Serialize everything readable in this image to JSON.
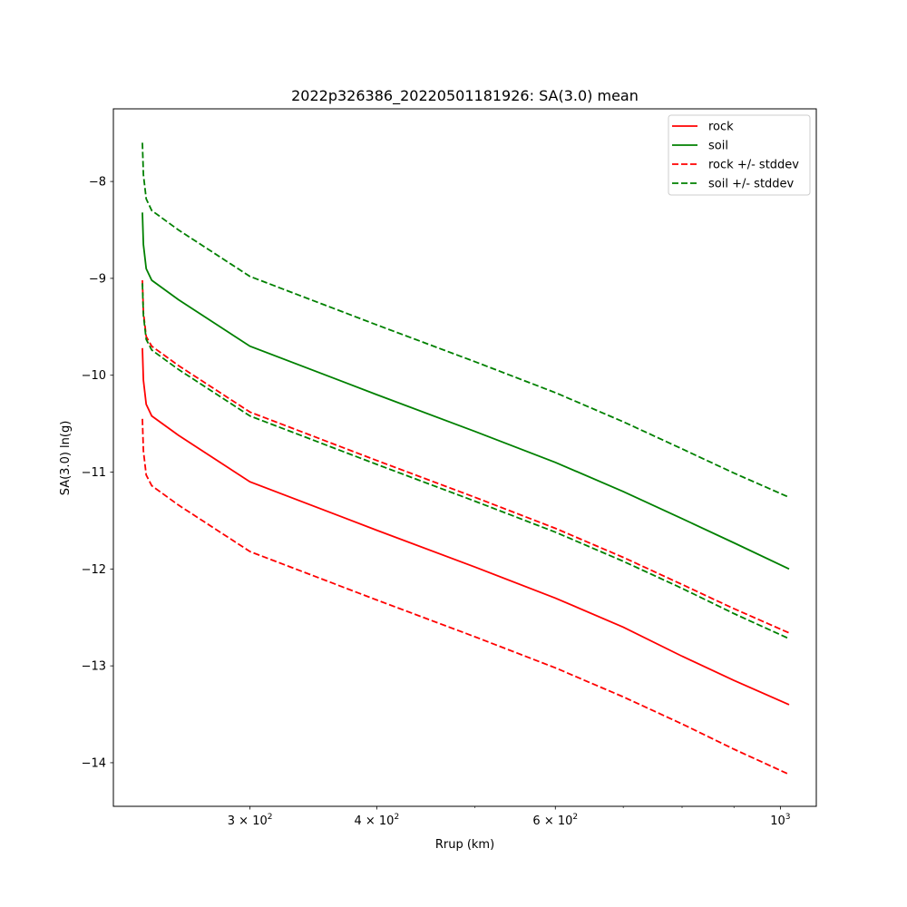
{
  "chart_data": {
    "type": "line",
    "title": "2022p326386_20220501181926: SA(3.0) mean",
    "xlabel": "Rrup (km)",
    "ylabel": "SA(3.0) ln(g)",
    "xscale": "log",
    "xlim": [
      220,
      1085
    ],
    "ylim": [
      -14.45,
      -7.25
    ],
    "grid": false,
    "legend_position": "upper-right",
    "x_ticks": [
      {
        "value": 300,
        "base": "3 × 10",
        "exp": "2"
      },
      {
        "value": 400,
        "base": "4 × 10",
        "exp": "2"
      },
      {
        "value": 600,
        "base": "6 × 10",
        "exp": "2"
      },
      {
        "value": 1000,
        "base": "10",
        "exp": "3"
      }
    ],
    "x_minor_ticks": [
      500,
      700,
      800,
      900
    ],
    "y_ticks": [
      -8,
      -9,
      -10,
      -11,
      -12,
      -13,
      -14
    ],
    "x": [
      235,
      235.5,
      237,
      240,
      255,
      300,
      400,
      500,
      600,
      700,
      800,
      900,
      1020
    ],
    "series": [
      {
        "name": "rock",
        "color": "#ff0000",
        "style": "solid",
        "values": [
          -9.72,
          -10.05,
          -10.3,
          -10.42,
          -10.62,
          -11.1,
          -11.6,
          -11.98,
          -12.3,
          -12.6,
          -12.9,
          -13.15,
          -13.4
        ]
      },
      {
        "name": "soil",
        "color": "#008000",
        "style": "solid",
        "values": [
          -8.32,
          -8.65,
          -8.9,
          -9.02,
          -9.22,
          -9.7,
          -10.2,
          -10.58,
          -10.9,
          -11.2,
          -11.48,
          -11.73,
          -12.0
        ]
      },
      {
        "name": "rock +/- stddev",
        "color": "#ff0000",
        "style": "dashed",
        "values": [
          -9.02,
          -9.35,
          -9.6,
          -9.7,
          -9.9,
          -10.38,
          -10.88,
          -11.26,
          -11.58,
          -11.88,
          -12.16,
          -12.41,
          -12.66
        ]
      },
      {
        "name": "",
        "color": "#ff0000",
        "style": "dashed",
        "values": [
          -10.45,
          -10.78,
          -11.03,
          -11.14,
          -11.34,
          -11.82,
          -12.32,
          -12.7,
          -13.02,
          -13.32,
          -13.6,
          -13.86,
          -14.12
        ]
      },
      {
        "name": "soil +/- stddev",
        "color": "#008000",
        "style": "dashed",
        "values": [
          -7.6,
          -7.93,
          -8.18,
          -8.3,
          -8.5,
          -8.98,
          -9.48,
          -9.86,
          -10.18,
          -10.48,
          -10.76,
          -11.01,
          -11.26
        ]
      },
      {
        "name": "",
        "color": "#008000",
        "style": "dashed",
        "values": [
          -9.05,
          -9.38,
          -9.63,
          -9.74,
          -9.94,
          -10.42,
          -10.92,
          -11.3,
          -11.62,
          -11.92,
          -12.2,
          -12.46,
          -12.72
        ]
      }
    ],
    "legend": [
      "rock",
      "soil",
      "rock +/- stddev",
      "soil +/- stddev"
    ]
  }
}
